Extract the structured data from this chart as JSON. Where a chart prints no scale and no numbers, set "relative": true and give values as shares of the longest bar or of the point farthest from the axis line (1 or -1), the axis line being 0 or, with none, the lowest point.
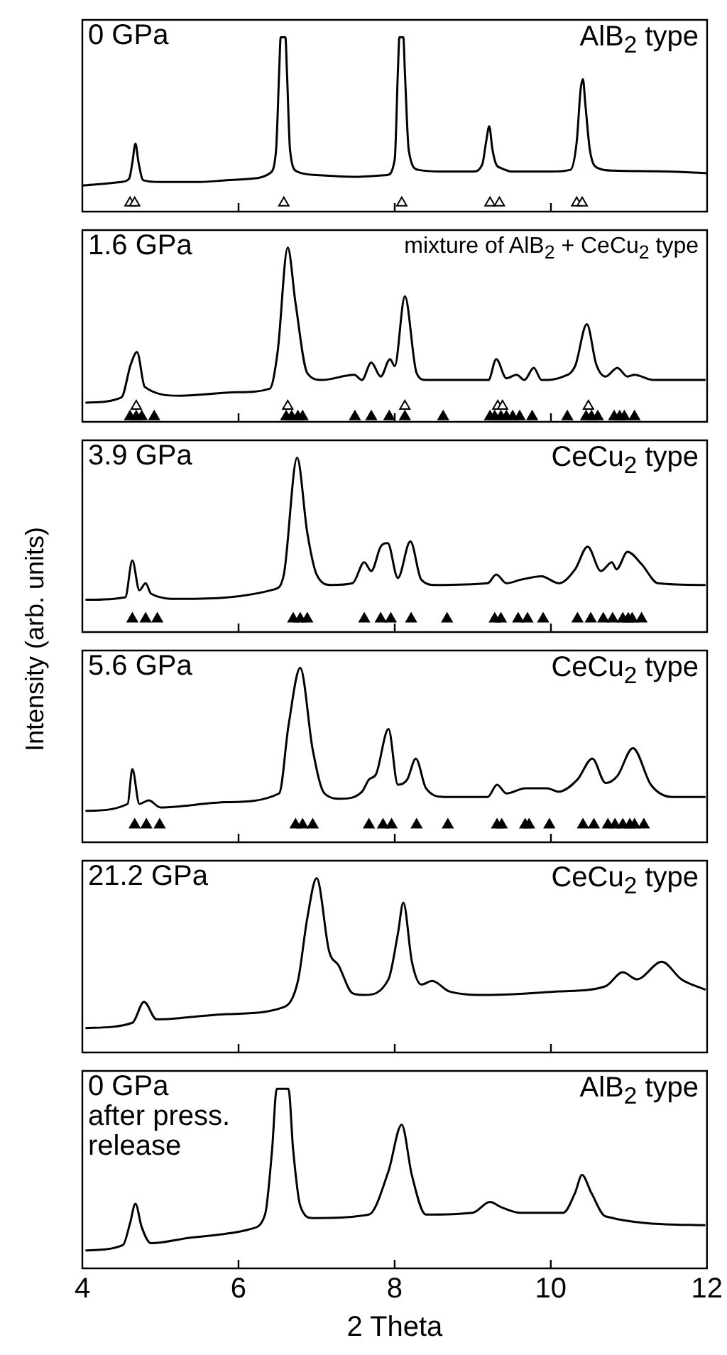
{
  "chart_data": [
    {
      "type": "line",
      "relative": true,
      "xlim": [
        4,
        12
      ],
      "xticks": [
        4,
        6,
        8,
        10,
        12
      ],
      "tick_labels": false,
      "legend": false,
      "annotations": [
        "0 GPa",
        "AlB$_{2}$ type"
      ],
      "series": [
        {
          "type": "line",
          "marker": "none",
          "color": "#000000",
          "x": [
            4.0,
            4.5,
            4.6,
            4.64,
            4.68,
            4.72,
            4.78,
            5.0,
            5.5,
            5.85,
            6.2,
            6.4,
            6.48,
            6.52,
            6.54,
            6.6,
            6.62,
            6.66,
            6.75,
            7.0,
            7.5,
            7.9,
            8.0,
            8.04,
            8.06,
            8.11,
            8.13,
            8.18,
            8.3,
            8.6,
            9.0,
            9.12,
            9.17,
            9.21,
            9.25,
            9.3,
            9.36,
            9.5,
            10.0,
            10.25,
            10.33,
            10.38,
            10.41,
            10.44,
            10.5,
            10.6,
            10.8,
            11.5,
            12.0
          ],
          "values": [
            0.15,
            0.17,
            0.19,
            0.28,
            0.39,
            0.28,
            0.18,
            0.17,
            0.17,
            0.18,
            0.19,
            0.22,
            0.35,
            0.8,
            1.0,
            1.0,
            0.8,
            0.35,
            0.23,
            0.21,
            0.2,
            0.21,
            0.3,
            0.8,
            1.0,
            1.0,
            0.8,
            0.35,
            0.24,
            0.23,
            0.23,
            0.27,
            0.4,
            0.49,
            0.36,
            0.27,
            0.25,
            0.23,
            0.23,
            0.24,
            0.4,
            0.7,
            0.76,
            0.62,
            0.35,
            0.25,
            0.235,
            0.23,
            0.22
          ]
        },
        {
          "type": "scatter",
          "marker": "triangle",
          "color": "#ffffff",
          "x": [
            4.61,
            4.67,
            6.58,
            8.09,
            9.22,
            9.34,
            10.33,
            10.4
          ],
          "values": [
            0.05,
            0.05,
            0.05,
            0.05,
            0.05,
            0.05,
            0.05,
            0.05
          ]
        }
      ]
    },
    {
      "type": "line",
      "relative": true,
      "xlim": [
        4,
        12
      ],
      "xticks": [
        4,
        6,
        8,
        10,
        12
      ],
      "tick_labels": false,
      "legend": false,
      "annotations": [
        "1.6 GPa",
        "mixture of AlB$_{2}$ + CeCu$_{2}$ type"
      ],
      "series": [
        {
          "type": "line",
          "marker": "none",
          "color": "#000000",
          "x": [
            4.04,
            4.5,
            4.62,
            4.7,
            4.8,
            5.25,
            5.98,
            6.4,
            6.5,
            6.63,
            6.73,
            6.88,
            7.07,
            7.48,
            7.58,
            7.7,
            7.82,
            7.94,
            8.0,
            8.13,
            8.28,
            8.4,
            9.2,
            9.3,
            9.43,
            9.56,
            9.66,
            9.78,
            9.88,
            10.16,
            10.31,
            10.46,
            10.58,
            10.7,
            10.85,
            10.98,
            11.07,
            11.31,
            11.98
          ],
          "values": [
            0.11,
            0.14,
            0.33,
            0.4,
            0.2,
            0.15,
            0.17,
            0.19,
            0.4,
            1.0,
            0.68,
            0.28,
            0.24,
            0.27,
            0.24,
            0.34,
            0.26,
            0.36,
            0.32,
            0.72,
            0.28,
            0.24,
            0.24,
            0.36,
            0.25,
            0.27,
            0.24,
            0.31,
            0.24,
            0.26,
            0.32,
            0.56,
            0.33,
            0.26,
            0.31,
            0.26,
            0.27,
            0.24,
            0.24
          ]
        },
        {
          "type": "scatter",
          "marker": "triangle",
          "color": "#ffffff",
          "x": [
            4.69,
            6.63,
            8.13,
            9.32,
            9.38,
            10.48
          ],
          "values": [
            0.09,
            0.09,
            0.09,
            0.09,
            0.09,
            0.09
          ]
        },
        {
          "type": "scatter",
          "marker": "triangle",
          "color": "#000000",
          "x": [
            4.61,
            4.69,
            4.76,
            4.92,
            6.61,
            6.68,
            6.76,
            6.82,
            7.49,
            7.7,
            7.93,
            8.13,
            8.62,
            9.22,
            9.28,
            9.36,
            9.43,
            9.51,
            9.6,
            9.76,
            10.21,
            10.45,
            10.52,
            10.6,
            10.81,
            10.88,
            10.94,
            11.07
          ],
          "values": [
            0.03,
            0.03,
            0.03,
            0.03,
            0.03,
            0.03,
            0.03,
            0.03,
            0.03,
            0.03,
            0.03,
            0.03,
            0.03,
            0.03,
            0.03,
            0.03,
            0.03,
            0.03,
            0.03,
            0.03,
            0.03,
            0.03,
            0.03,
            0.03,
            0.03,
            0.03,
            0.03,
            0.03
          ]
        }
      ]
    },
    {
      "type": "line",
      "relative": true,
      "ylabel": "Intensity (arb. units)",
      "xlim": [
        4,
        12
      ],
      "xticks": [
        4,
        6,
        8,
        10,
        12
      ],
      "tick_labels": false,
      "legend": false,
      "annotations": [
        "3.9 GPa",
        "CeCu$_{2}$ type"
      ],
      "series": [
        {
          "type": "line",
          "marker": "none",
          "color": "#000000",
          "x": [
            4.04,
            4.55,
            4.64,
            4.73,
            4.81,
            4.88,
            5.25,
            6.46,
            6.58,
            6.75,
            6.88,
            7.0,
            7.19,
            7.46,
            7.61,
            7.7,
            7.82,
            7.91,
            8.04,
            8.2,
            8.34,
            8.52,
            9.19,
            9.3,
            9.43,
            9.61,
            9.88,
            10.1,
            10.31,
            10.47,
            10.64,
            10.78,
            10.84,
            10.98,
            11.16,
            11.37,
            11.98
          ],
          "values": [
            0.185,
            0.2,
            0.41,
            0.24,
            0.28,
            0.22,
            0.19,
            0.245,
            0.33,
            1.0,
            0.57,
            0.33,
            0.27,
            0.28,
            0.4,
            0.35,
            0.49,
            0.51,
            0.31,
            0.52,
            0.3,
            0.27,
            0.28,
            0.33,
            0.28,
            0.3,
            0.32,
            0.28,
            0.36,
            0.49,
            0.35,
            0.4,
            0.36,
            0.46,
            0.39,
            0.28,
            0.27
          ]
        },
        {
          "type": "scatter",
          "marker": "triangle",
          "color": "#000000",
          "x": [
            4.64,
            4.81,
            4.96,
            6.7,
            6.79,
            6.88,
            7.61,
            7.82,
            7.95,
            8.21,
            8.67,
            9.28,
            9.36,
            9.58,
            9.7,
            9.9,
            10.34,
            10.51,
            10.67,
            10.79,
            10.92,
            10.99,
            11.04,
            11.16
          ],
          "values": [
            0.075,
            0.075,
            0.075,
            0.075,
            0.075,
            0.075,
            0.075,
            0.075,
            0.075,
            0.075,
            0.075,
            0.075,
            0.075,
            0.075,
            0.075,
            0.075,
            0.075,
            0.075,
            0.075,
            0.075,
            0.075,
            0.075,
            0.075,
            0.075
          ]
        }
      ]
    },
    {
      "type": "line",
      "relative": true,
      "xlim": [
        4,
        12
      ],
      "xticks": [
        4,
        6,
        8,
        10,
        12
      ],
      "tick_labels": false,
      "legend": false,
      "annotations": [
        "5.6 GPa",
        "CeCu$_{2}$ type"
      ],
      "series": [
        {
          "type": "line",
          "marker": "none",
          "color": "#000000",
          "x": [
            4.04,
            4.58,
            4.64,
            4.73,
            4.85,
            5.0,
            5.85,
            6.52,
            6.64,
            6.79,
            6.95,
            7.1,
            7.31,
            7.58,
            7.67,
            7.76,
            7.92,
            8.04,
            8.16,
            8.27,
            8.4,
            8.64,
            9.19,
            9.31,
            9.43,
            9.67,
            9.95,
            10.1,
            10.34,
            10.53,
            10.7,
            10.85,
            11.05,
            11.28,
            11.55,
            11.98
          ],
          "values": [
            0.18,
            0.22,
            0.42,
            0.22,
            0.24,
            0.2,
            0.23,
            0.28,
            0.67,
            1.0,
            0.53,
            0.28,
            0.25,
            0.29,
            0.36,
            0.39,
            0.65,
            0.33,
            0.36,
            0.48,
            0.31,
            0.26,
            0.26,
            0.33,
            0.28,
            0.31,
            0.31,
            0.29,
            0.36,
            0.48,
            0.34,
            0.38,
            0.54,
            0.33,
            0.26,
            0.26
          ]
        },
        {
          "type": "scatter",
          "marker": "triangle",
          "color": "#000000",
          "x": [
            4.67,
            4.82,
            4.99,
            6.73,
            6.82,
            6.95,
            7.67,
            7.85,
            7.96,
            8.28,
            8.68,
            9.31,
            9.37,
            9.67,
            9.72,
            9.98,
            10.41,
            10.55,
            10.73,
            10.82,
            10.92,
            11.01,
            11.07,
            11.19
          ],
          "values": [
            0.1,
            0.1,
            0.1,
            0.1,
            0.1,
            0.1,
            0.1,
            0.1,
            0.1,
            0.1,
            0.1,
            0.1,
            0.1,
            0.1,
            0.1,
            0.1,
            0.1,
            0.1,
            0.1,
            0.1,
            0.1,
            0.1,
            0.1,
            0.1
          ]
        }
      ]
    },
    {
      "type": "line",
      "relative": true,
      "xlim": [
        4,
        12
      ],
      "xticks": [
        4,
        6,
        8,
        10,
        12
      ],
      "tick_labels": false,
      "legend": false,
      "annotations": [
        "21.2 GPa",
        "CeCu$_{2}$ type"
      ],
      "series": [
        {
          "type": "line",
          "marker": "none",
          "color": "#000000",
          "x": [
            4.04,
            4.64,
            4.79,
            4.95,
            5.85,
            6.58,
            6.76,
            6.88,
            7.0,
            7.16,
            7.28,
            7.46,
            7.61,
            7.92,
            8.04,
            8.11,
            8.22,
            8.34,
            8.48,
            8.7,
            9.19,
            10.1,
            10.7,
            10.92,
            11.1,
            11.42,
            11.67,
            11.98
          ],
          "values": [
            0.14,
            0.17,
            0.29,
            0.19,
            0.22,
            0.26,
            0.41,
            0.77,
            1.0,
            0.58,
            0.5,
            0.34,
            0.33,
            0.42,
            0.68,
            0.86,
            0.52,
            0.39,
            0.41,
            0.35,
            0.33,
            0.35,
            0.38,
            0.46,
            0.42,
            0.52,
            0.42,
            0.36
          ]
        }
      ]
    },
    {
      "type": "line",
      "relative": true,
      "xlabel": "2 Theta",
      "xlim": [
        4,
        12
      ],
      "xticks": [
        4,
        6,
        8,
        10,
        12
      ],
      "tick_labels": "x",
      "legend": false,
      "annotations": [
        "0 GPa",
        "after press.",
        "release",
        "AlB$_{2}$ type"
      ],
      "series": [
        {
          "type": "line",
          "marker": "none",
          "color": "#000000",
          "x": [
            4.04,
            4.52,
            4.61,
            4.68,
            4.76,
            4.88,
            5.37,
            5.79,
            6.16,
            6.34,
            6.43,
            6.49,
            6.64,
            6.7,
            6.79,
            6.95,
            7.67,
            7.92,
            8.09,
            8.22,
            8.4,
            9.0,
            9.22,
            9.37,
            9.61,
            10.16,
            10.31,
            10.4,
            10.52,
            10.7,
            11.98
          ],
          "values": [
            0.1,
            0.13,
            0.25,
            0.36,
            0.23,
            0.14,
            0.17,
            0.19,
            0.22,
            0.3,
            0.66,
            1.0,
            1.0,
            0.66,
            0.35,
            0.28,
            0.3,
            0.54,
            0.8,
            0.52,
            0.3,
            0.31,
            0.37,
            0.34,
            0.31,
            0.31,
            0.42,
            0.52,
            0.42,
            0.29,
            0.24
          ]
        }
      ]
    }
  ]
}
